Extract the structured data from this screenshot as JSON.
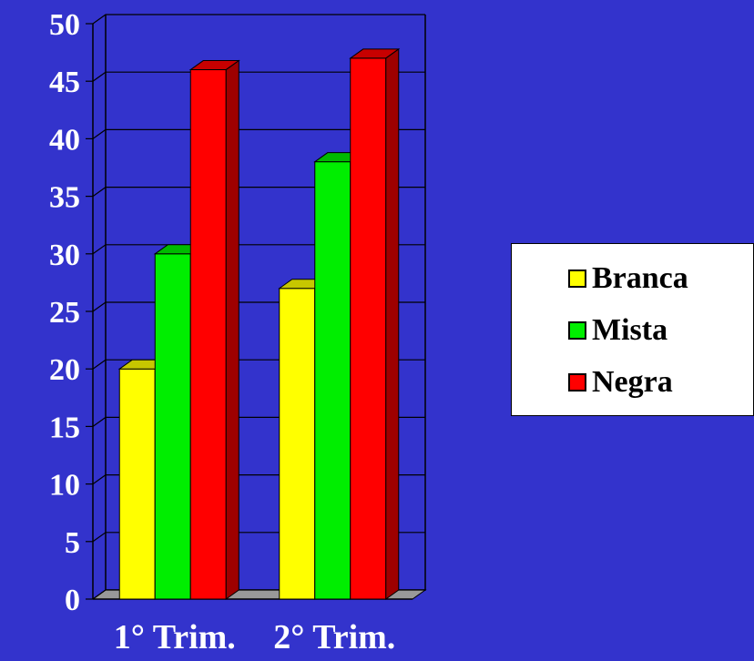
{
  "chart_data": {
    "type": "bar",
    "categories": [
      "1° Trim.",
      "2° Trim."
    ],
    "series": [
      {
        "name": "Branca",
        "color": "#ffff00",
        "values": [
          20,
          27
        ]
      },
      {
        "name": "Mista",
        "color": "#00ee00",
        "values": [
          30,
          38
        ]
      },
      {
        "name": "Negra",
        "color": "#ff0000",
        "values": [
          46,
          47
        ]
      }
    ],
    "yticks": [
      "0",
      "5",
      "10",
      "15",
      "20",
      "25",
      "30",
      "35",
      "40",
      "45",
      "50"
    ],
    "ylim": [
      0,
      50
    ],
    "grid": true,
    "legend_position": "right",
    "three_d": true,
    "background_color": "#3333cc"
  }
}
